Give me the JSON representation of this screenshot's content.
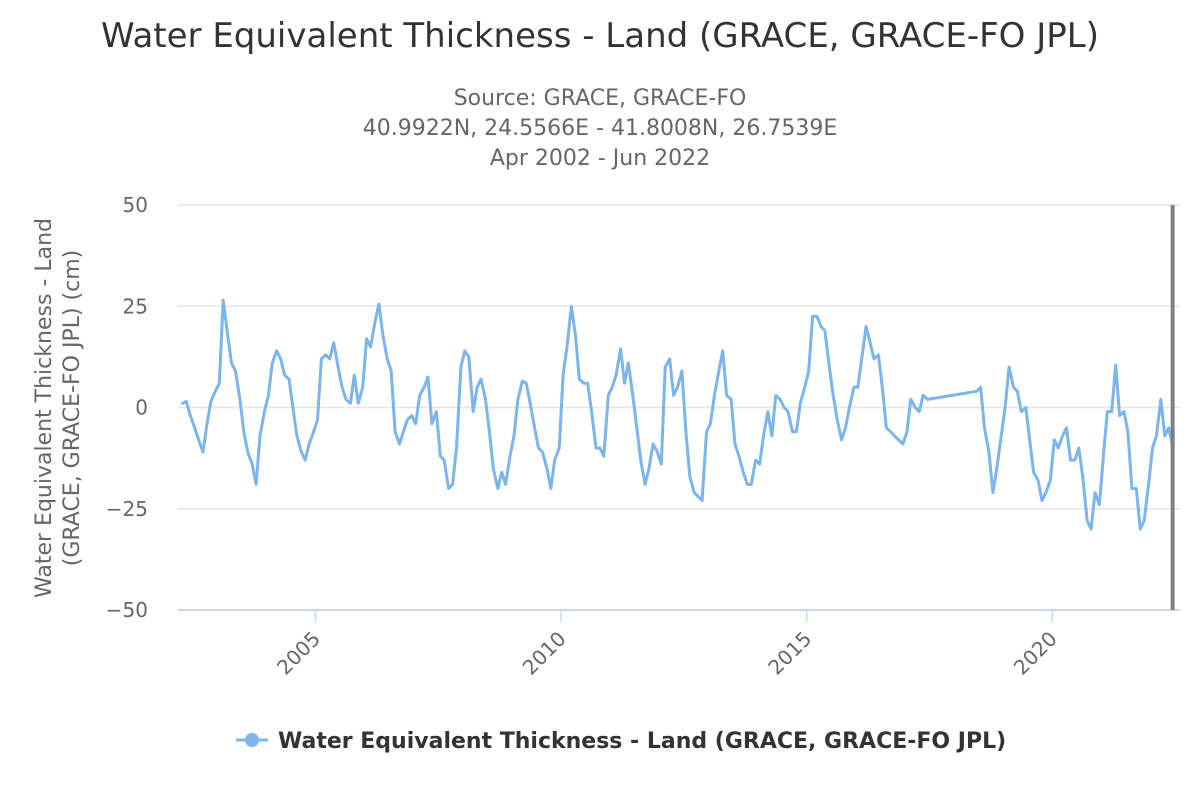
{
  "chart_data": {
    "type": "line",
    "title": "Water Equivalent Thickness - Land (GRACE, GRACE-FO JPL)",
    "subtitle_lines": [
      "Source: GRACE, GRACE-FO",
      "40.9922N, 24.5566E - 41.8008N, 26.7539E",
      "Apr 2002 - Jun 2022"
    ],
    "ylabel_lines": [
      "Water Equivalent Thickness - Land",
      "(GRACE, GRACE-FO JPL) (cm)"
    ],
    "xlabel": "",
    "ylim": [
      -50,
      50
    ],
    "yticks": [
      50,
      25,
      0,
      -25,
      -50
    ],
    "ytick_labels": [
      "50",
      "25",
      "0",
      "−25",
      "−50"
    ],
    "xlim": [
      2002.2,
      2022.6
    ],
    "xticks": [
      2005,
      2010,
      2015,
      2020
    ],
    "xtick_labels": [
      "2005",
      "2010",
      "2015",
      "2020"
    ],
    "grid": true,
    "legend_position": "bottom-center",
    "colors": {
      "series": "#7cb5ec",
      "grid": "#e6e6e6",
      "axis": "#ccd6eb",
      "crosshair": "#808080"
    },
    "crosshair_x": 2022.45,
    "series": [
      {
        "name": "Water Equivalent Thickness - Land (GRACE, GRACE-FO JPL)",
        "x": [
          2002.29,
          2002.37,
          2002.45,
          2002.54,
          2002.62,
          2002.71,
          2002.79,
          2002.87,
          2002.96,
          2003.04,
          2003.12,
          2003.21,
          2003.29,
          2003.37,
          2003.46,
          2003.54,
          2003.62,
          2003.71,
          2003.79,
          2003.87,
          2003.96,
          2004.04,
          2004.12,
          2004.21,
          2004.29,
          2004.37,
          2004.46,
          2004.54,
          2004.62,
          2004.71,
          2004.79,
          2004.87,
          2004.96,
          2005.04,
          2005.12,
          2005.21,
          2005.29,
          2005.37,
          2005.46,
          2005.54,
          2005.62,
          2005.71,
          2005.79,
          2005.87,
          2005.96,
          2006.04,
          2006.12,
          2006.21,
          2006.29,
          2006.37,
          2006.46,
          2006.54,
          2006.62,
          2006.71,
          2006.79,
          2006.87,
          2006.96,
          2007.04,
          2007.12,
          2007.21,
          2007.29,
          2007.37,
          2007.46,
          2007.54,
          2007.62,
          2007.71,
          2007.79,
          2007.87,
          2007.96,
          2008.04,
          2008.12,
          2008.21,
          2008.29,
          2008.37,
          2008.46,
          2008.54,
          2008.62,
          2008.71,
          2008.79,
          2008.87,
          2008.96,
          2009.04,
          2009.12,
          2009.21,
          2009.29,
          2009.37,
          2009.46,
          2009.54,
          2009.62,
          2009.71,
          2009.79,
          2009.87,
          2009.96,
          2010.04,
          2010.12,
          2010.21,
          2010.29,
          2010.37,
          2010.46,
          2010.54,
          2010.62,
          2010.71,
          2010.79,
          2010.87,
          2010.96,
          2011.04,
          2011.12,
          2011.21,
          2011.29,
          2011.37,
          2011.46,
          2011.54,
          2011.62,
          2011.71,
          2011.79,
          2011.87,
          2011.96,
          2012.04,
          2012.12,
          2012.21,
          2012.29,
          2012.37,
          2012.46,
          2012.54,
          2012.62,
          2012.71,
          2012.79,
          2012.87,
          2012.96,
          2013.04,
          2013.12,
          2013.21,
          2013.29,
          2013.37,
          2013.46,
          2013.54,
          2013.62,
          2013.71,
          2013.79,
          2013.87,
          2013.96,
          2014.04,
          2014.12,
          2014.21,
          2014.29,
          2014.37,
          2014.46,
          2014.54,
          2014.62,
          2014.71,
          2014.79,
          2014.87,
          2014.96,
          2015.04,
          2015.12,
          2015.21,
          2015.29,
          2015.37,
          2015.46,
          2015.54,
          2015.62,
          2015.71,
          2015.79,
          2015.87,
          2015.96,
          2016.04,
          2016.12,
          2016.21,
          2016.29,
          2016.37,
          2016.46,
          2016.54,
          2016.62,
          2016.71,
          2016.79,
          2016.87,
          2016.96,
          2017.04,
          2017.12,
          2017.21,
          2017.29,
          2017.37,
          2017.46,
          2018.46,
          2018.54,
          2018.62,
          2018.71,
          2018.79,
          2018.87,
          2018.96,
          2019.04,
          2019.12,
          2019.21,
          2019.29,
          2019.37,
          2019.46,
          2019.54,
          2019.62,
          2019.71,
          2019.79,
          2019.87,
          2019.96,
          2020.04,
          2020.12,
          2020.21,
          2020.29,
          2020.37,
          2020.46,
          2020.54,
          2020.62,
          2020.71,
          2020.79,
          2020.87,
          2020.96,
          2021.04,
          2021.12,
          2021.21,
          2021.29,
          2021.37,
          2021.46,
          2021.54,
          2021.62,
          2021.71,
          2021.79,
          2021.87,
          2021.96,
          2022.04,
          2022.12,
          2022.21,
          2022.29,
          2022.37,
          2022.46
        ],
        "y": [
          1,
          1.5,
          -2,
          -5,
          -8,
          -11,
          -4,
          1.5,
          4,
          6,
          26.5,
          18,
          11,
          9,
          2,
          -6,
          -11,
          -14,
          -19,
          -7,
          -1,
          3,
          11,
          14,
          12,
          8,
          7,
          0,
          -7,
          -11,
          -13,
          -9,
          -6,
          -3,
          12,
          13,
          12,
          16,
          10,
          5,
          2,
          1,
          8,
          1,
          5,
          17,
          15,
          21,
          25.5,
          18,
          12,
          9,
          -6,
          -9,
          -6,
          -3,
          -2,
          -4,
          3,
          5,
          7.5,
          -4,
          -1,
          -12,
          -13,
          -20,
          -19,
          -10,
          10,
          14,
          12.5,
          -1,
          5,
          7,
          2,
          -6,
          -15,
          -20,
          -16,
          -19,
          -12,
          -7,
          2,
          6.5,
          6,
          1,
          -5,
          -10,
          -11,
          -15,
          -20,
          -13,
          -10,
          8,
          15,
          25,
          18,
          7,
          6,
          6,
          -1,
          -10,
          -10,
          -12,
          3,
          5,
          8,
          14.5,
          6,
          11,
          3,
          -5,
          -13,
          -19,
          -15,
          -9,
          -11,
          -14,
          10,
          12,
          3,
          5,
          9,
          -6,
          -17,
          -21,
          -22,
          -23,
          -6,
          -4,
          3,
          9,
          14,
          3,
          2,
          -9,
          -12,
          -16,
          -19,
          -19,
          -13,
          -14,
          -7,
          -1,
          -7,
          3,
          2,
          0,
          -1,
          -6,
          -6,
          1,
          5,
          9,
          22.5,
          22.5,
          20,
          19,
          10,
          3,
          -3,
          -8,
          -5,
          0,
          5,
          5,
          12,
          20,
          16,
          12,
          13,
          5,
          -5,
          -6,
          -7,
          -8,
          -9,
          -6,
          2,
          0,
          -1,
          3,
          2,
          4,
          5,
          -5,
          -11,
          -21,
          -15,
          -7,
          0,
          10,
          5,
          4,
          -1,
          0,
          -8,
          -16,
          -18,
          -23,
          -21,
          -18,
          -8,
          -10,
          -7,
          -5,
          -13,
          -13,
          -10,
          -17,
          -28,
          -30,
          -21,
          -24,
          -12,
          -1,
          -1,
          10.5,
          -2,
          -1,
          -6,
          -20,
          -20,
          -30,
          -28,
          -19,
          -10,
          -7,
          2,
          -7,
          -5,
          -10
        ]
      }
    ]
  }
}
